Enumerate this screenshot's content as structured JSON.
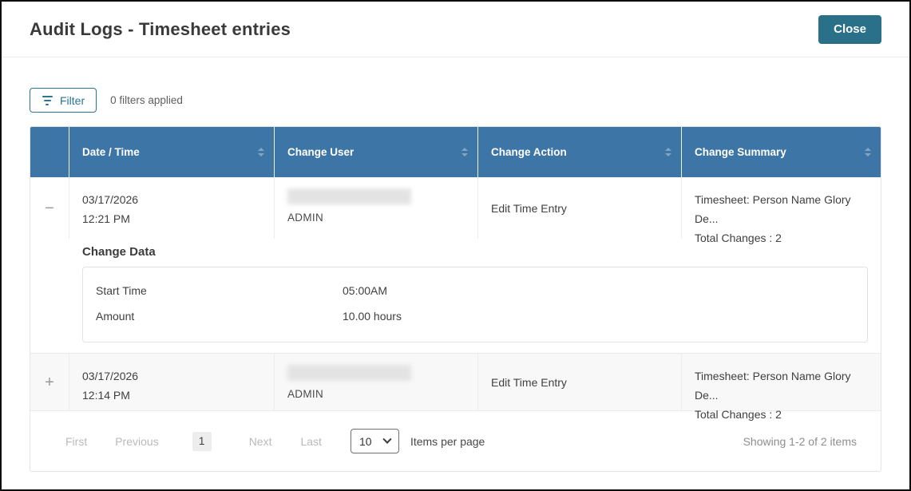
{
  "header": {
    "title": "Audit Logs - Timesheet entries",
    "close_label": "Close"
  },
  "filter_bar": {
    "filter_label": "Filter",
    "status": "0 filters applied"
  },
  "table": {
    "columns": [
      "Date / Time",
      "Change User",
      "Change Action",
      "Change Summary"
    ],
    "rows": [
      {
        "toggle_icon": "−",
        "expanded": true,
        "date": "03/17/2026",
        "time": "12:21 PM",
        "user_name_blurred": true,
        "user_role": "ADMIN",
        "action": "Edit Time Entry",
        "summary_line1": "Timesheet: Person Name Glory De...",
        "summary_line2": "Total Changes : 2",
        "change_data": {
          "title": "Change Data",
          "fields": [
            {
              "label": "Start Time",
              "value": "05:00AM"
            },
            {
              "label": "Amount",
              "value": "10.00 hours"
            }
          ]
        }
      },
      {
        "toggle_icon": "+",
        "expanded": false,
        "date": "03/17/2026",
        "time": "12:14 PM",
        "user_name_blurred": true,
        "user_role": "ADMIN",
        "action": "Edit Time Entry",
        "summary_line1": "Timesheet: Person Name Glory De...",
        "summary_line2": "Total Changes : 2"
      }
    ]
  },
  "pagination": {
    "first_label": "First",
    "previous_label": "Previous",
    "current_page": "1",
    "next_label": "Next",
    "last_label": "Last",
    "page_size": "10",
    "items_per_page_label": "Items per page",
    "showing_text": "Showing 1-2 of 2 items"
  },
  "icons": {
    "filter": "filter-lines",
    "collapse_row": "minus",
    "expand_row": "plus",
    "select_chevron": "chevron-down",
    "column_sort": "sort-arrows"
  },
  "colors": {
    "table_header_blue": "#3d76a6",
    "close_button_teal": "#2a7089",
    "filter_accent_teal": "#2a7691",
    "row_alt_background": "#f8f8f8",
    "disabled_link_gray": "#b9b9b9",
    "body_text": "#3f3f3f",
    "window_border": "#0d0d0d"
  }
}
